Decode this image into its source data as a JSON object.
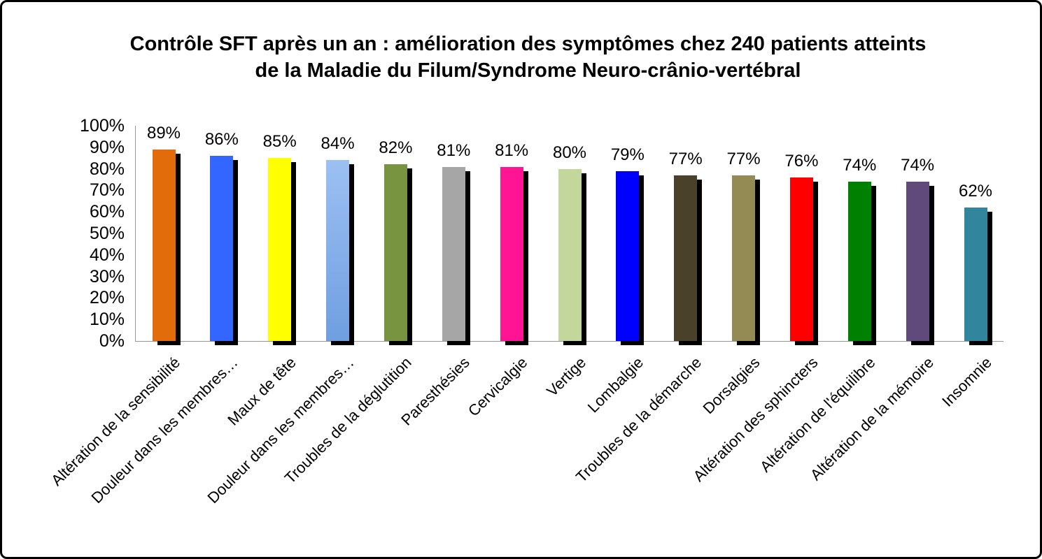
{
  "chart_data": {
    "type": "bar",
    "title": "Contrôle SFT après un an : amélioration des symptômes chez 240 patients atteints de la Maladie du Filum/Syndrome Neuro-crânio-vertébral",
    "title_line1": "Contrôle SFT après un an : amélioration des symptômes chez 240 patients atteints",
    "title_line2": "de la Maladie du Filum/Syndrome Neuro-crânio-vertébral",
    "categories": [
      "Altération de la sensibilité",
      "Douleur dans les membres…",
      "Maux de tête",
      "Douleur dans les membres…",
      "Troubles de la déglutition",
      "Paresthésies",
      "Cervicalgie",
      "Vertige",
      "Lombalgie",
      "Troubles de la démarche",
      "Dorsalgies",
      "Altération des sphincters",
      "Altération de l'équilibre",
      "Altération de la mémoire",
      "Insomnie"
    ],
    "values": [
      89,
      86,
      85,
      84,
      82,
      81,
      81,
      80,
      79,
      77,
      77,
      76,
      74,
      74,
      62
    ],
    "value_labels": [
      "89%",
      "86%",
      "85%",
      "84%",
      "82%",
      "81%",
      "81%",
      "80%",
      "79%",
      "77%",
      "77%",
      "76%",
      "74%",
      "74%",
      "62%"
    ],
    "bar_colors": [
      "#e26b0a",
      "#3366ff",
      "#ffff00",
      "#8db4e2",
      "#789440",
      "#a6a6a6",
      "#ff1493",
      "#c3d69b",
      "#0000ff",
      "#49412a",
      "#948a54",
      "#ff0000",
      "#008000",
      "#60497b",
      "#31859c"
    ],
    "gradient_bar": {
      "index": 3,
      "from": "#9cc0f2",
      "to": "#6f9fe0"
    },
    "shadow_color": "#000000",
    "axis_color": "#969696",
    "xlabel": "",
    "ylabel": "",
    "ylim": [
      0,
      100
    ],
    "y_ticks": [
      "0%",
      "10%",
      "20%",
      "30%",
      "40%",
      "50%",
      "60%",
      "70%",
      "80%",
      "90%",
      "100%"
    ],
    "grid": false,
    "legend": null
  }
}
